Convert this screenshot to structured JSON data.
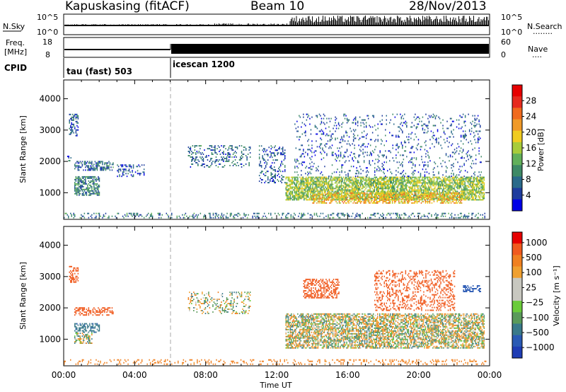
{
  "header": {
    "station": "Kapuskasing (fitACF)",
    "beam": "Beam 10",
    "date": "28/Nov/2013"
  },
  "strips": {
    "nsky_label": "N.Sky",
    "nsearch_label": "N.Search",
    "nsearch_dots": "........",
    "nsky_ticks": [
      "10^5",
      "10^0"
    ],
    "nsearch_ticks": [
      "10^5",
      "10^0"
    ],
    "freq_label_1": "Freq.",
    "freq_label_2": "[MHz]",
    "freq_ticks": [
      "18",
      "8"
    ],
    "nave_label": "Nave",
    "nave_dots": "....",
    "nave_ticks": [
      "60",
      "0"
    ],
    "cpid_label": "CPID",
    "cpid_modes": [
      {
        "label": "tau (fast) 503",
        "start_hour": 0
      },
      {
        "label": "icescan 1200",
        "start_hour": 6
      }
    ]
  },
  "colors": {
    "power_scale": [
      "#0000e6",
      "#1e3c9e",
      "#2a6a8a",
      "#3e8a66",
      "#62b05a",
      "#a8cc3a",
      "#f0cc20",
      "#f09a28",
      "#f06a1e",
      "#e62a1e",
      "#e60000"
    ],
    "velocity_scale": [
      "#1e3cb4",
      "#2a5ab4",
      "#3a7a8a",
      "#5a9a5a",
      "#6acc3a",
      "#c8c8c0",
      "#c8c8c0",
      "#f0a030",
      "#f08020",
      "#f05a1e",
      "#e60000"
    ]
  },
  "chart_data": [
    {
      "type": "heatmap",
      "name": "power",
      "ylabel": "Slant Range [km]",
      "xlabel": "",
      "colorbar_label": "Power [dB]",
      "colorbar_ticks": [
        "28",
        "24",
        "20",
        "16",
        "12",
        "8",
        "4"
      ],
      "x_ticks": [],
      "y_ticks": [
        "1000",
        "2000",
        "3000",
        "4000"
      ],
      "xlim": [
        0,
        24
      ],
      "ylim": [
        150,
        4600
      ],
      "clim": [
        0,
        32
      ],
      "grid": false,
      "patches": [
        {
          "t0": 0.3,
          "t1": 0.8,
          "r0": 2800,
          "r1": 3500,
          "v": 6,
          "d": 0.45
        },
        {
          "t0": 0.2,
          "t1": 0.4,
          "r0": 2000,
          "r1": 2200,
          "v": 5,
          "d": 0.4
        },
        {
          "t0": 0.6,
          "t1": 2.8,
          "r0": 1700,
          "r1": 2000,
          "v": 7,
          "d": 0.5
        },
        {
          "t0": 0.6,
          "t1": 2.0,
          "r0": 900,
          "r1": 1500,
          "v": 9,
          "d": 0.6
        },
        {
          "t0": 3.0,
          "t1": 4.5,
          "r0": 1500,
          "r1": 1900,
          "v": 5,
          "d": 0.3
        },
        {
          "t0": 7.0,
          "t1": 10.5,
          "r0": 1800,
          "r1": 2500,
          "v": 7,
          "d": 0.25
        },
        {
          "t0": 11.0,
          "t1": 12.5,
          "r0": 1300,
          "r1": 2500,
          "v": 6,
          "d": 0.25
        },
        {
          "t0": 12.5,
          "t1": 23.7,
          "r0": 750,
          "r1": 1500,
          "v": 15,
          "d": 0.75
        },
        {
          "t0": 14.0,
          "t1": 22.5,
          "r0": 650,
          "r1": 1000,
          "v": 20,
          "d": 0.55
        },
        {
          "t0": 13.0,
          "t1": 23.5,
          "r0": 1500,
          "r1": 3500,
          "v": 6,
          "d": 0.12
        },
        {
          "t0": 0.0,
          "t1": 23.8,
          "r0": 180,
          "r1": 320,
          "v": 8,
          "d": 0.25
        }
      ]
    },
    {
      "type": "heatmap",
      "name": "velocity",
      "ylabel": "Slant Range [km]",
      "xlabel": "Time UT",
      "colorbar_label": "Velocity [m s⁻¹]",
      "colorbar_ticks": [
        "1000",
        "500",
        "100",
        "25",
        "−25",
        "−100",
        "−500",
        "−1000"
      ],
      "x_ticks": [
        "00:00",
        "04:00",
        "08:00",
        "12:00",
        "16:00",
        "20:00",
        "00:00"
      ],
      "y_ticks": [
        "1000",
        "2000",
        "3000",
        "4000"
      ],
      "xlim": [
        0,
        24
      ],
      "ylim": [
        150,
        4600
      ],
      "clim": [
        -1000,
        1000
      ],
      "grid": false,
      "patches": [
        {
          "t0": 0.3,
          "t1": 0.8,
          "r0": 2800,
          "r1": 3300,
          "v": -120,
          "d": 0.45
        },
        {
          "t0": 0.6,
          "t1": 2.8,
          "r0": 1750,
          "r1": 2000,
          "v": -150,
          "d": 0.5
        },
        {
          "t0": 0.6,
          "t1": 2.0,
          "r0": 1200,
          "r1": 1500,
          "v": 60,
          "d": 0.5
        },
        {
          "t0": 0.6,
          "t1": 1.6,
          "r0": 850,
          "r1": 1200,
          "v": 0,
          "d": 0.5
        },
        {
          "t0": 7.0,
          "t1": 10.5,
          "r0": 1800,
          "r1": 2500,
          "v": 0,
          "d": 0.25
        },
        {
          "t0": 12.5,
          "t1": 23.7,
          "r0": 700,
          "r1": 1800,
          "v": 0,
          "d": 0.65
        },
        {
          "t0": 13.5,
          "t1": 15.5,
          "r0": 2300,
          "r1": 2900,
          "v": -180,
          "d": 0.5
        },
        {
          "t0": 17.5,
          "t1": 22.0,
          "r0": 1900,
          "r1": 3200,
          "v": -160,
          "d": 0.3
        },
        {
          "t0": 22.5,
          "t1": 23.5,
          "r0": 2500,
          "r1": 2700,
          "v": 120,
          "d": 0.5
        },
        {
          "t0": 0.0,
          "t1": 23.8,
          "r0": 180,
          "r1": 320,
          "v": -50,
          "d": 0.2
        }
      ]
    }
  ]
}
